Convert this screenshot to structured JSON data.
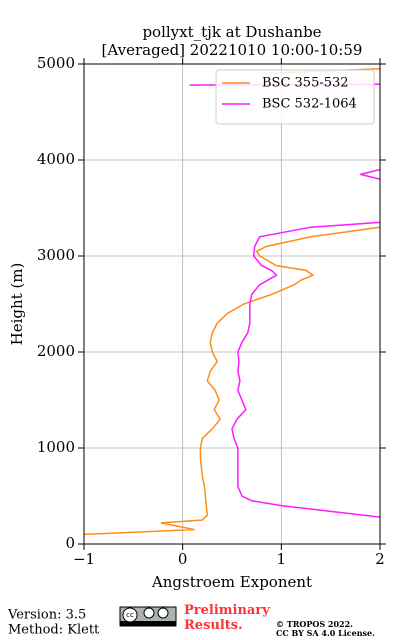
{
  "chart_data": {
    "type": "profile",
    "title": "pollyxt_tjk at Dushanbe",
    "subtitle": "[Averaged] 20221010 10:00-10:59",
    "x_label": "Angstroem Exponent",
    "y_label": "Height (m)",
    "xlim": [
      -1,
      2
    ],
    "xticks": [
      {
        "value": -1,
        "label": "−1"
      },
      0,
      1,
      2
    ],
    "ylim": [
      0,
      5000
    ],
    "yticks": [
      0,
      1000,
      2000,
      3000,
      4000,
      5000
    ],
    "grid": true,
    "legend": "upper right",
    "series": [
      {
        "name": "BSC 355-532",
        "color": "#ff8c1a",
        "y": [
          100,
          150,
          220,
          250,
          300,
          400,
          500,
          600,
          700,
          800,
          900,
          1000,
          1100,
          1200,
          1300,
          1400,
          1500,
          1600,
          1700,
          1800,
          1900,
          2000,
          2100,
          2200,
          2300,
          2400,
          2500,
          2600,
          2700,
          2750,
          2800,
          2850,
          2900,
          3000,
          3050,
          3100,
          3200,
          3300,
          3400,
          4900,
          4950
        ],
        "values": [
          -1.0,
          0.12,
          -0.22,
          0.2,
          0.25,
          0.24,
          0.23,
          0.22,
          0.2,
          0.19,
          0.18,
          0.18,
          0.2,
          0.3,
          0.38,
          0.32,
          0.37,
          0.33,
          0.25,
          0.28,
          0.35,
          0.3,
          0.28,
          0.3,
          0.35,
          0.45,
          0.62,
          0.9,
          1.13,
          1.2,
          1.32,
          1.25,
          0.95,
          0.78,
          0.75,
          0.85,
          1.3,
          2.0,
          null,
          0.8,
          2.0
        ]
      },
      {
        "name": "BSC 532-1064",
        "color": "#ff1aff",
        "y": [
          280,
          400,
          450,
          500,
          600,
          800,
          1000,
          1100,
          1200,
          1300,
          1400,
          1500,
          1600,
          1700,
          1800,
          1900,
          2000,
          2100,
          2200,
          2300,
          2400,
          2500,
          2600,
          2700,
          2800,
          2850,
          2900,
          3000,
          3100,
          3200,
          3300,
          3350,
          3500,
          3800,
          3850,
          3900,
          4000,
          4780,
          4790
        ],
        "values": [
          2.0,
          1.0,
          0.7,
          0.6,
          0.56,
          0.56,
          0.56,
          0.52,
          0.5,
          0.55,
          0.64,
          0.6,
          0.56,
          0.58,
          0.56,
          0.57,
          0.56,
          0.6,
          0.66,
          0.68,
          0.68,
          0.68,
          0.7,
          0.78,
          0.95,
          0.9,
          0.8,
          0.72,
          0.73,
          0.78,
          1.3,
          2.0,
          null,
          2.0,
          1.8,
          2.0,
          null,
          0.07,
          2.0
        ]
      }
    ]
  },
  "footer": {
    "version": "Version: 3.5",
    "method": "Method: Klett",
    "preliminary": "Preliminary Results.",
    "copyright": "© TROPOS 2022.",
    "license": "CC BY SA 4.0 License."
  }
}
